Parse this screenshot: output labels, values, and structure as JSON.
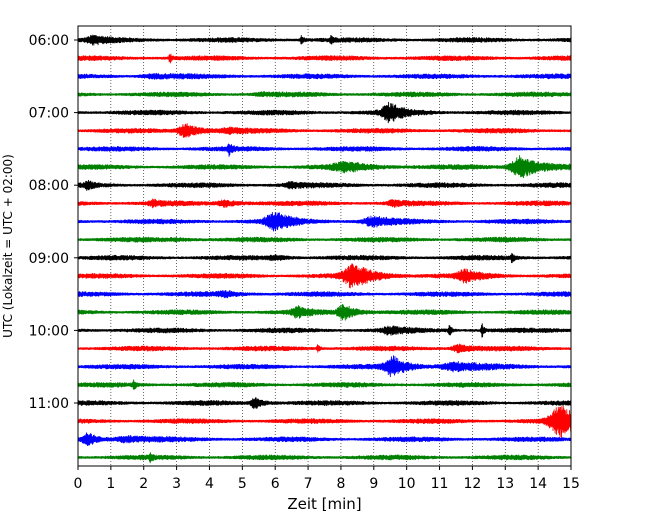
{
  "chart_data": {
    "type": "line",
    "title": "",
    "xlabel": "Zeit  [min]",
    "ylabel": "UTC (Lokalzeit = UTC + 02:00)",
    "xlim": [
      0,
      15
    ],
    "x_ticks": [
      0,
      1,
      2,
      3,
      4,
      5,
      6,
      7,
      8,
      9,
      10,
      11,
      12,
      13,
      14,
      15
    ],
    "y_tick_labels": [
      "06:00",
      "07:00",
      "08:00",
      "09:00",
      "10:00",
      "11:00"
    ],
    "trace_count": 24,
    "trace_start": "06:00",
    "trace_interval_min": 15,
    "trace_colors": [
      "#000000",
      "#ff0000",
      "#0000ff",
      "#008000"
    ],
    "grid": "vertical dotted",
    "traces": [
      {
        "start": "06:00",
        "events": [
          [
            0.5,
            0.3,
            0.3
          ],
          [
            6.8,
            0.45,
            0.05
          ],
          [
            7.7,
            0.4,
            0.05
          ]
        ]
      },
      {
        "start": "06:15",
        "events": [
          [
            2.8,
            0.45,
            0.05
          ]
        ]
      },
      {
        "start": "06:30",
        "events": [
          [
            2.3,
            0.15,
            0.5
          ]
        ]
      },
      {
        "start": "06:45",
        "events": [
          [
            5.6,
            0.1,
            0.3
          ]
        ]
      },
      {
        "start": "07:00",
        "events": [
          [
            9.5,
            0.75,
            0.35
          ]
        ]
      },
      {
        "start": "07:15",
        "events": [
          [
            3.3,
            0.6,
            0.35
          ],
          [
            4.6,
            0.15,
            0.3
          ]
        ]
      },
      {
        "start": "07:30",
        "events": [
          [
            4.6,
            0.45,
            0.06
          ]
        ]
      },
      {
        "start": "07:45",
        "events": [
          [
            8.2,
            0.35,
            0.6
          ],
          [
            13.5,
            1.0,
            0.45
          ]
        ]
      },
      {
        "start": "08:00",
        "events": [
          [
            0.3,
            0.3,
            0.15
          ],
          [
            6.5,
            0.2,
            0.3
          ]
        ]
      },
      {
        "start": "08:15",
        "events": [
          [
            2.3,
            0.25,
            0.2
          ],
          [
            4.5,
            0.3,
            0.3
          ],
          [
            9.6,
            0.25,
            0.2
          ]
        ]
      },
      {
        "start": "08:30",
        "events": [
          [
            6.0,
            0.75,
            0.4
          ],
          [
            9.0,
            0.4,
            0.4
          ]
        ]
      },
      {
        "start": "08:45",
        "events": [
          [
            3.0,
            0.08,
            0.5
          ]
        ]
      },
      {
        "start": "09:00",
        "events": [
          [
            6.0,
            0.18,
            0.3
          ],
          [
            13.2,
            0.4,
            0.05
          ]
        ]
      },
      {
        "start": "09:15",
        "events": [
          [
            8.4,
            1.0,
            0.45
          ],
          [
            11.8,
            0.45,
            0.35
          ]
        ]
      },
      {
        "start": "09:30",
        "events": [
          [
            4.5,
            0.2,
            0.3
          ]
        ]
      },
      {
        "start": "09:45",
        "events": [
          [
            6.7,
            0.45,
            0.25
          ],
          [
            8.1,
            0.65,
            0.3
          ]
        ]
      },
      {
        "start": "10:00",
        "events": [
          [
            9.5,
            0.3,
            0.3
          ],
          [
            11.3,
            0.5,
            0.05
          ],
          [
            12.3,
            0.55,
            0.05
          ]
        ]
      },
      {
        "start": "10:15",
        "events": [
          [
            7.3,
            0.3,
            0.05
          ],
          [
            11.6,
            0.35,
            0.3
          ]
        ]
      },
      {
        "start": "10:30",
        "events": [
          [
            9.6,
            0.85,
            0.35
          ],
          [
            11.5,
            0.35,
            0.6
          ]
        ]
      },
      {
        "start": "10:45",
        "events": [
          [
            1.7,
            0.4,
            0.05
          ]
        ]
      },
      {
        "start": "11:00",
        "events": [
          [
            5.4,
            0.45,
            0.2
          ]
        ]
      },
      {
        "start": "11:15",
        "events": [
          [
            14.7,
            1.3,
            0.45
          ]
        ]
      },
      {
        "start": "11:30",
        "events": [
          [
            0.3,
            0.55,
            0.25
          ],
          [
            1.5,
            0.25,
            0.5
          ]
        ]
      },
      {
        "start": "11:45",
        "events": [
          [
            2.2,
            0.35,
            0.05
          ]
        ]
      }
    ]
  }
}
